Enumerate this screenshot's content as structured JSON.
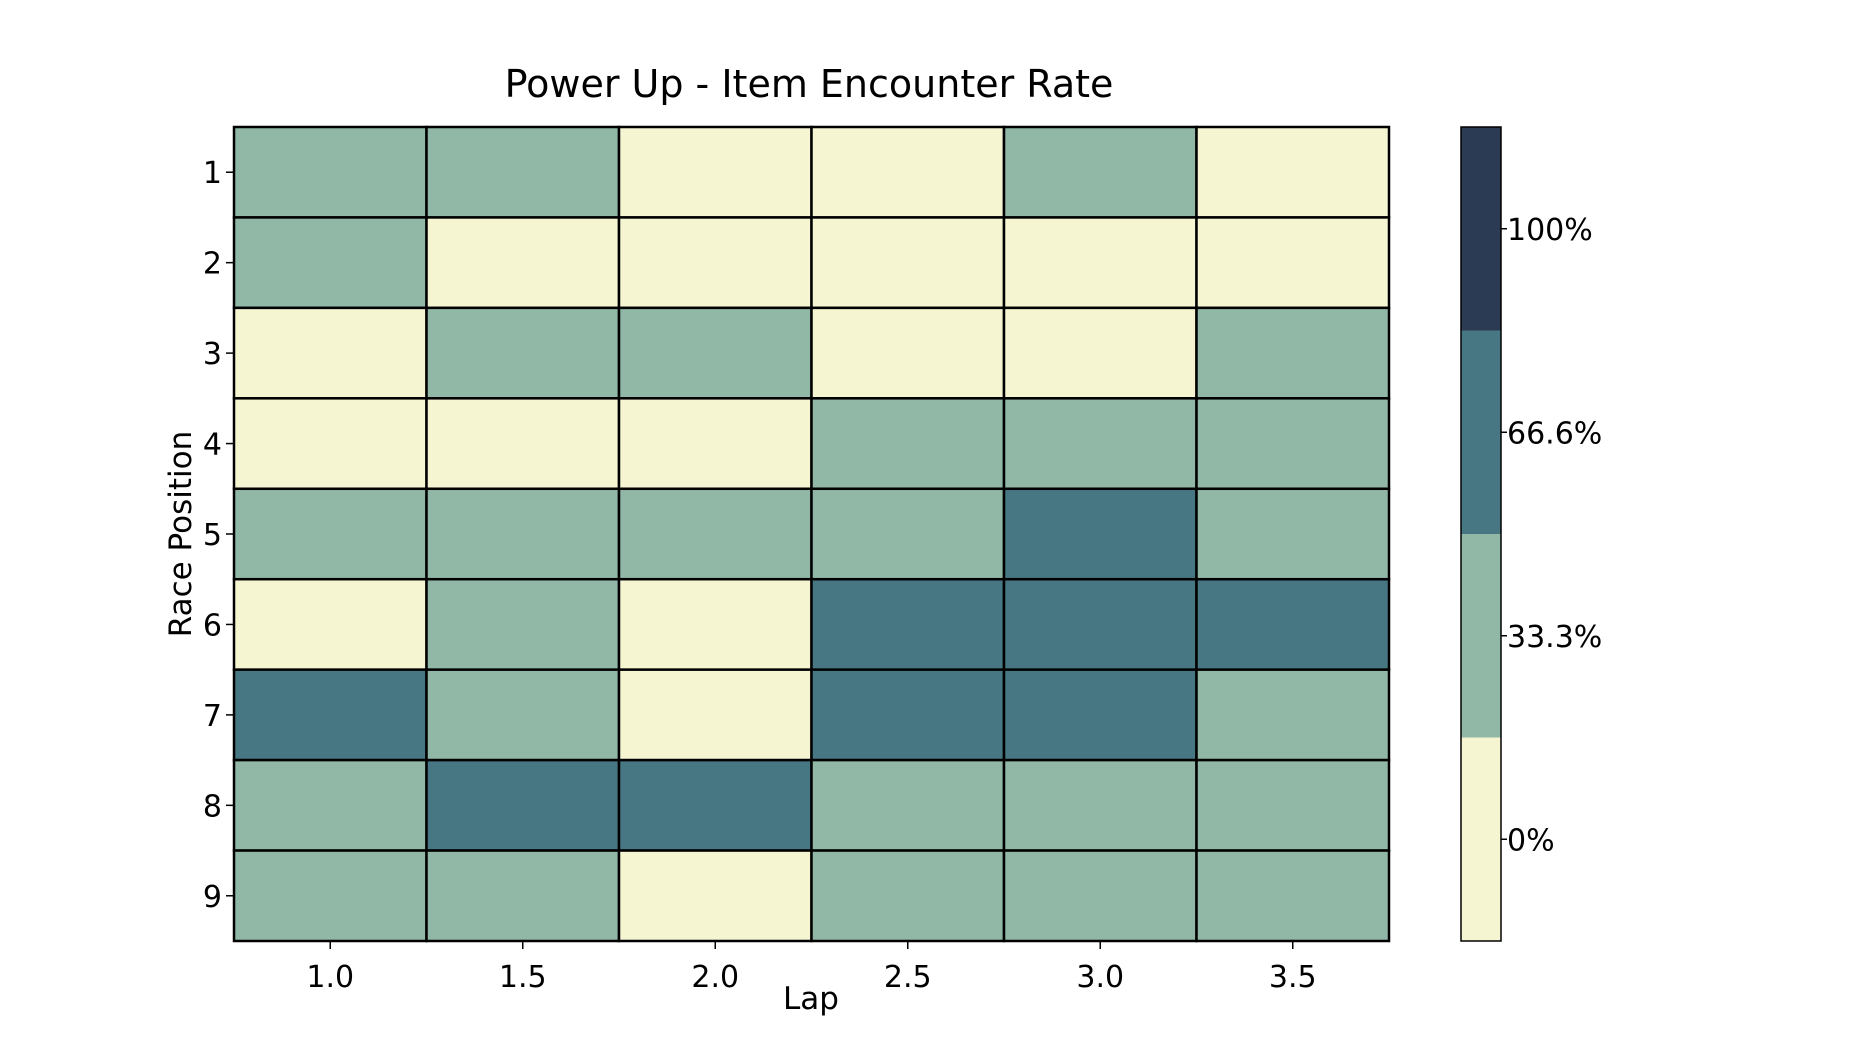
{
  "chart_data": {
    "type": "heatmap",
    "title": "Power Up - Item Encounter Rate",
    "xlabel": "Lap",
    "ylabel": "Race Position",
    "x": [
      "1.0",
      "1.5",
      "2.0",
      "2.5",
      "3.0",
      "3.5"
    ],
    "y": [
      "1",
      "2",
      "3",
      "4",
      "5",
      "6",
      "7",
      "8",
      "9"
    ],
    "values": [
      [
        33.3,
        33.3,
        0,
        0,
        33.3,
        0
      ],
      [
        33.3,
        0,
        0,
        0,
        0,
        0
      ],
      [
        0,
        33.3,
        33.3,
        0,
        0,
        33.3
      ],
      [
        0,
        0,
        0,
        33.3,
        33.3,
        33.3
      ],
      [
        33.3,
        33.3,
        33.3,
        33.3,
        66.6,
        33.3
      ],
      [
        0,
        33.3,
        0,
        66.6,
        66.6,
        66.6
      ],
      [
        66.6,
        33.3,
        0,
        66.6,
        66.6,
        33.3
      ],
      [
        33.3,
        66.6,
        66.6,
        33.3,
        33.3,
        33.3
      ],
      [
        33.3,
        33.3,
        0,
        33.3,
        33.3,
        33.3
      ]
    ],
    "color_scale": {
      "levels": [
        0,
        33.3,
        66.6,
        100
      ],
      "labels": [
        "0%",
        "33.3%",
        "66.6%",
        "100%"
      ],
      "colors": [
        "#f5f5d2",
        "#91b8a6",
        "#467783",
        "#2a3b53"
      ]
    },
    "grid": false,
    "legend": "colorbar-right"
  }
}
